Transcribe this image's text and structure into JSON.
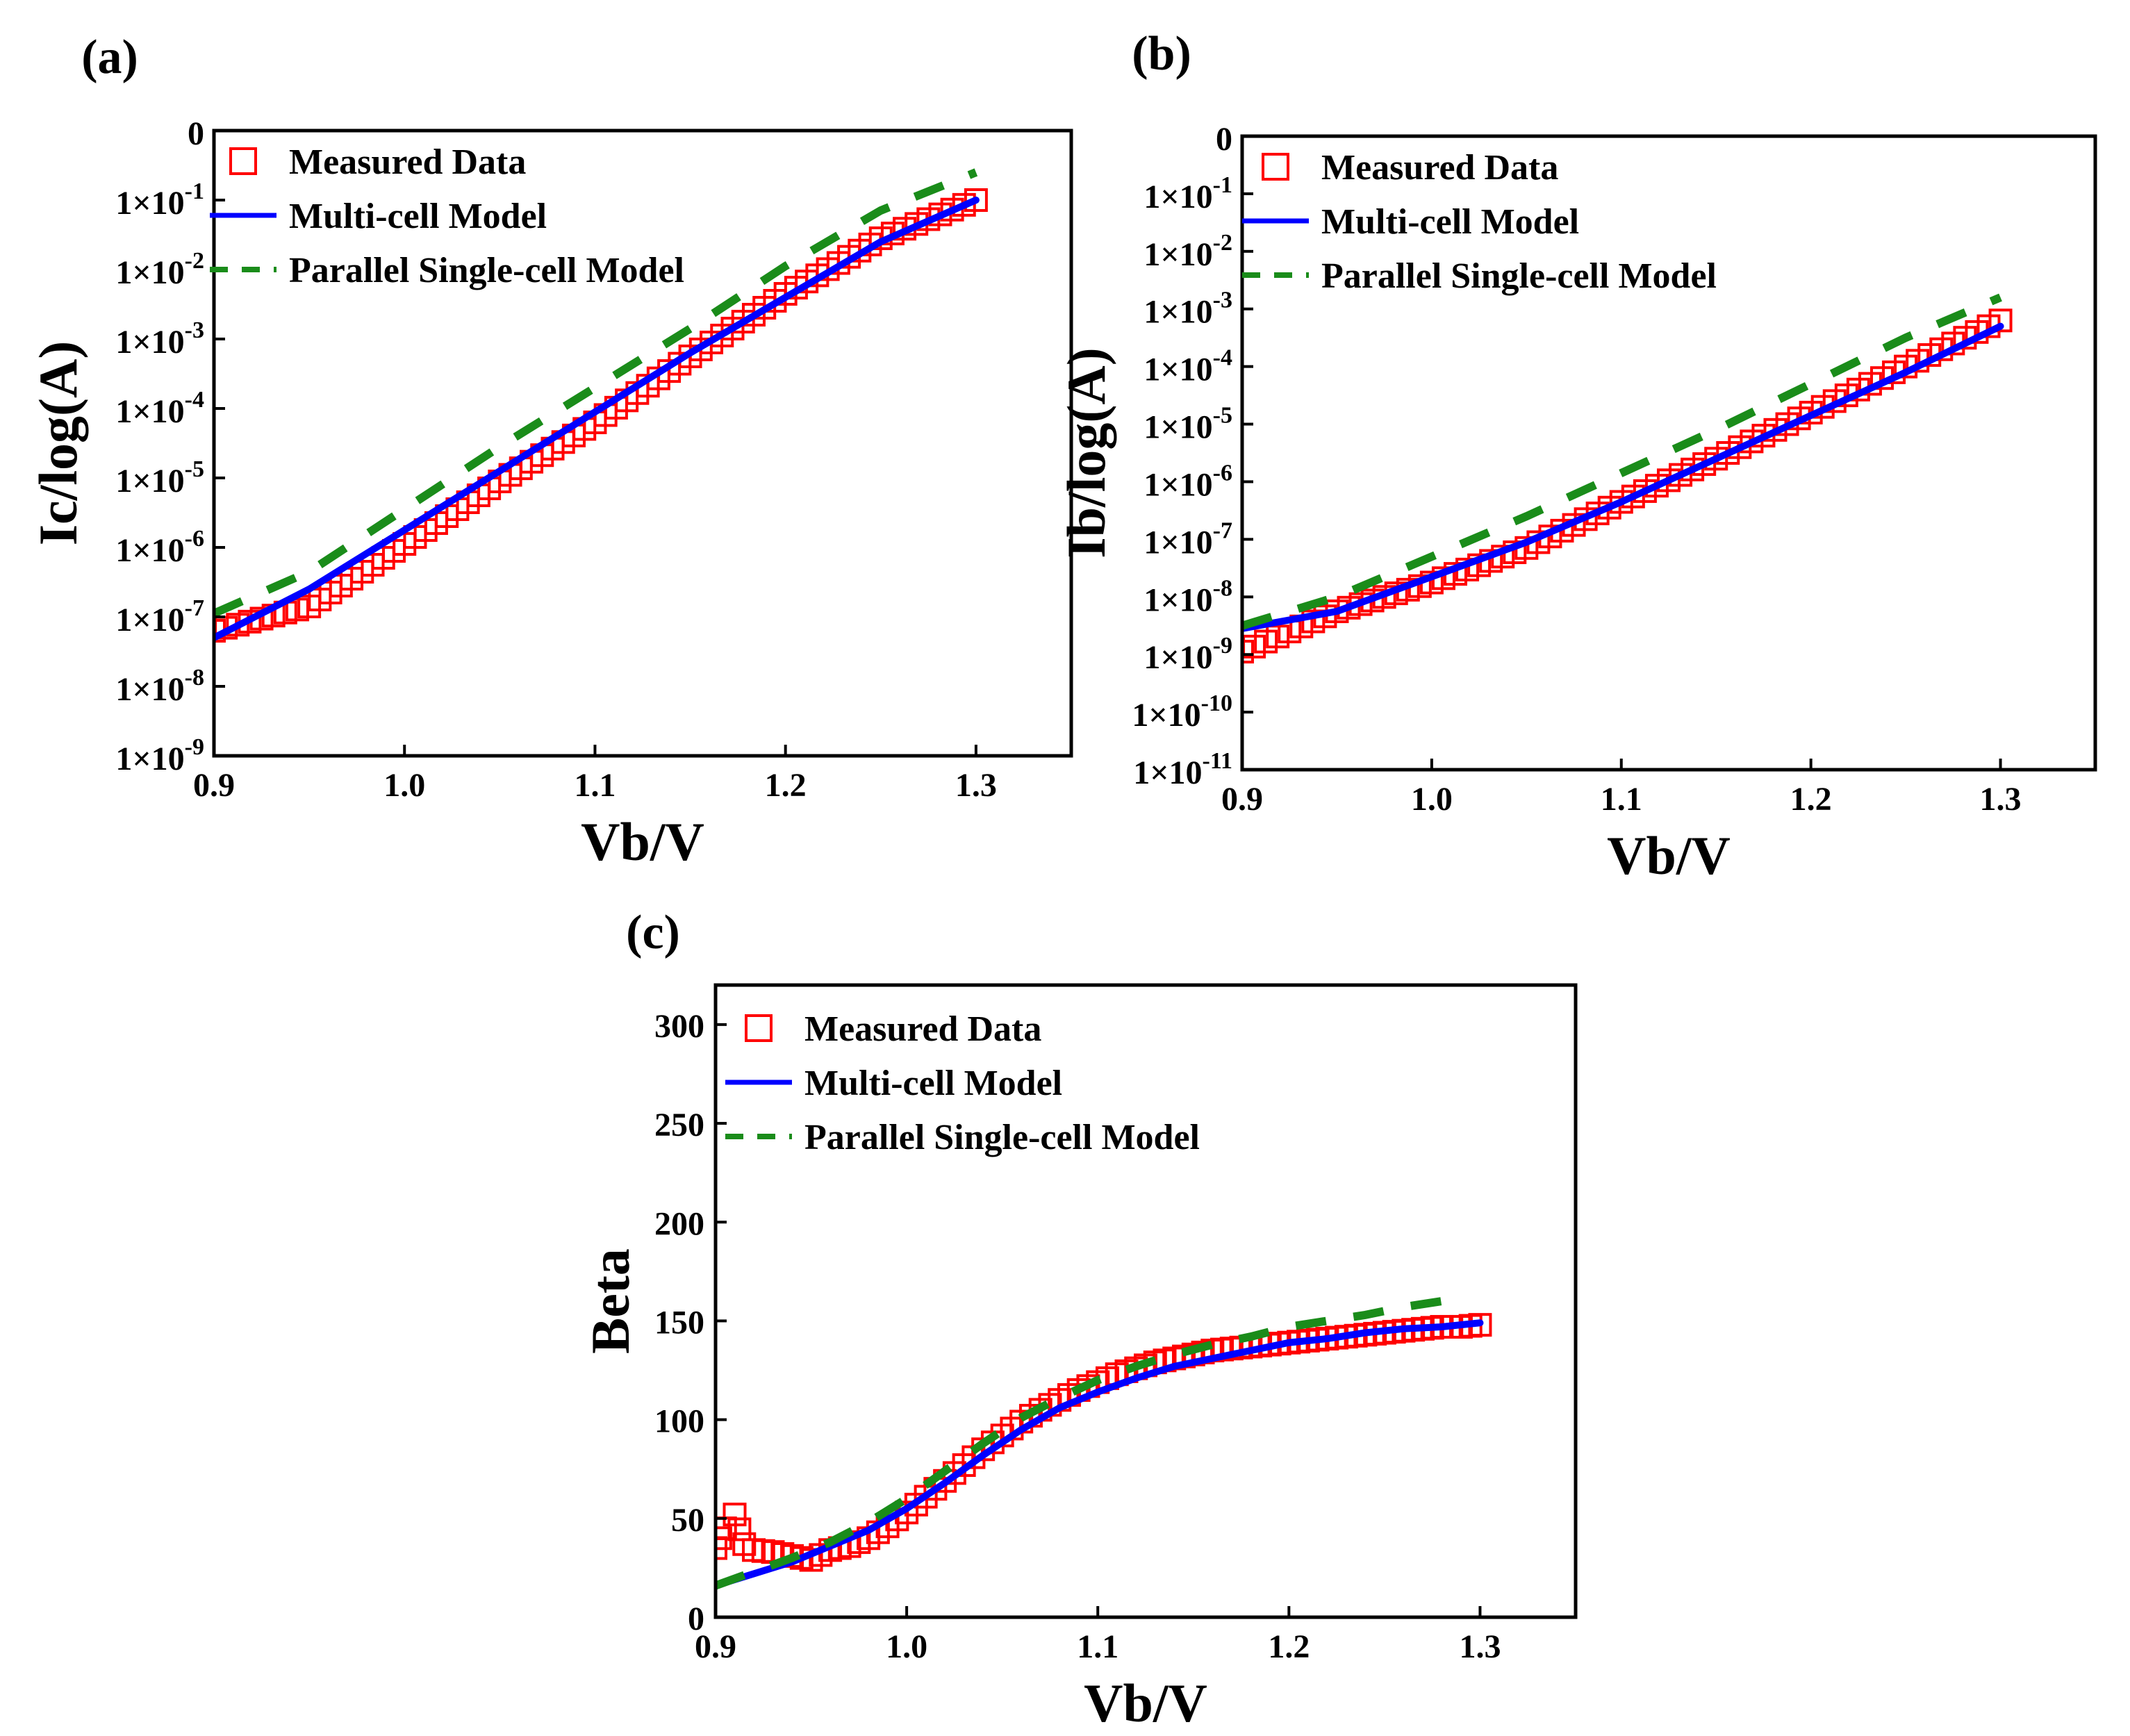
{
  "colors": {
    "measured": "#ff0000",
    "multi_cell": "#0000ff",
    "parallel_single_cell": "#1a8c1a",
    "axis": "#000000"
  },
  "chart_data": [
    {
      "panel_label": "(a)",
      "type": "line",
      "yscale": "log",
      "xlabel": "Vb/V",
      "ylabel": "Ic/log(A)",
      "xlim": [
        0.9,
        1.35
      ],
      "ylim_log10": [
        -9,
        0
      ],
      "x_ticks": [
        "0.9",
        "1.0",
        "1.1",
        "1.2",
        "1.3"
      ],
      "y_ticks": [
        {
          "mantissa": "0",
          "exp": ""
        },
        {
          "mantissa": "1×10",
          "exp": "-1"
        },
        {
          "mantissa": "1×10",
          "exp": "-2"
        },
        {
          "mantissa": "1×10",
          "exp": "-3"
        },
        {
          "mantissa": "1×10",
          "exp": "-4"
        },
        {
          "mantissa": "1×10",
          "exp": "-5"
        },
        {
          "mantissa": "1×10",
          "exp": "-6"
        },
        {
          "mantissa": "1×10",
          "exp": "-7"
        },
        {
          "mantissa": "1×10",
          "exp": "-8"
        },
        {
          "mantissa": "1×10",
          "exp": "-9"
        }
      ],
      "legend": [
        "Measured Data",
        "Multi-cell Model",
        "Parallel Single-cell Model"
      ],
      "series": [
        {
          "name": "Measured Data",
          "style": "markers",
          "x": [
            0.9,
            0.95,
            1.0,
            1.05,
            1.1,
            1.15,
            1.2,
            1.25,
            1.3
          ],
          "log10_y": [
            -7.2,
            -6.85,
            -5.95,
            -5.05,
            -4.2,
            -3.25,
            -2.35,
            -1.55,
            -1.0
          ]
        },
        {
          "name": "Multi-cell Model",
          "style": "solid",
          "x": [
            0.9,
            0.95,
            1.0,
            1.05,
            1.1,
            1.15,
            1.2,
            1.25,
            1.3
          ],
          "log10_y": [
            -7.3,
            -6.6,
            -5.75,
            -4.9,
            -4.05,
            -3.2,
            -2.4,
            -1.6,
            -1.0
          ]
        },
        {
          "name": "Parallel Single-cell Model",
          "style": "dashed",
          "x": [
            0.9,
            0.95,
            1.0,
            1.05,
            1.1,
            1.15,
            1.2,
            1.25,
            1.3
          ],
          "log10_y": [
            -6.95,
            -6.35,
            -5.45,
            -4.55,
            -3.7,
            -2.85,
            -1.95,
            -1.15,
            -0.6
          ]
        }
      ]
    },
    {
      "panel_label": "(b)",
      "type": "line",
      "yscale": "log",
      "xlabel": "Vb/V",
      "ylabel": "Ib/log(A)",
      "xlim": [
        0.9,
        1.35
      ],
      "ylim_log10": [
        -11,
        0
      ],
      "x_ticks": [
        "0.9",
        "1.0",
        "1.1",
        "1.2",
        "1.3"
      ],
      "y_ticks": [
        {
          "mantissa": "0",
          "exp": ""
        },
        {
          "mantissa": "1×10",
          "exp": "-1"
        },
        {
          "mantissa": "1×10",
          "exp": "-2"
        },
        {
          "mantissa": "1×10",
          "exp": "-3"
        },
        {
          "mantissa": "1×10",
          "exp": "-4"
        },
        {
          "mantissa": "1×10",
          "exp": "-5"
        },
        {
          "mantissa": "1×10",
          "exp": "-6"
        },
        {
          "mantissa": "1×10",
          "exp": "-7"
        },
        {
          "mantissa": "1×10",
          "exp": "-8"
        },
        {
          "mantissa": "1×10",
          "exp": "-9"
        },
        {
          "mantissa": "1×10",
          "exp": "-10"
        },
        {
          "mantissa": "1×10",
          "exp": "-11"
        }
      ],
      "legend": [
        "Measured Data",
        "Multi-cell Model",
        "Parallel Single-cell Model"
      ],
      "series": [
        {
          "name": "Measured Data",
          "style": "markers",
          "x": [
            0.9,
            0.95,
            1.0,
            1.05,
            1.1,
            1.15,
            1.2,
            1.25,
            1.3
          ],
          "log10_y": [
            -8.95,
            -8.25,
            -7.75,
            -7.15,
            -6.35,
            -5.6,
            -4.8,
            -4.0,
            -3.2
          ]
        },
        {
          "name": "Multi-cell Model",
          "style": "solid",
          "x": [
            0.9,
            0.95,
            1.0,
            1.05,
            1.1,
            1.15,
            1.2,
            1.25,
            1.3
          ],
          "log10_y": [
            -8.55,
            -8.25,
            -7.65,
            -7.05,
            -6.35,
            -5.6,
            -4.85,
            -4.1,
            -3.3
          ]
        },
        {
          "name": "Parallel Single-cell Model",
          "style": "dashed",
          "x": [
            0.9,
            0.95,
            1.0,
            1.05,
            1.1,
            1.15,
            1.2,
            1.25,
            1.3
          ],
          "log10_y": [
            -8.5,
            -8.0,
            -7.3,
            -6.6,
            -5.85,
            -5.1,
            -4.3,
            -3.5,
            -2.8
          ]
        }
      ]
    },
    {
      "panel_label": "(c)",
      "type": "line",
      "yscale": "linear",
      "xlabel": "Vb/V",
      "ylabel": "Beta",
      "xlim": [
        0.9,
        1.35
      ],
      "ylim": [
        0,
        320
      ],
      "x_ticks": [
        "0.9",
        "1.0",
        "1.1",
        "1.2",
        "1.3"
      ],
      "y_ticks": [
        "0",
        "50",
        "100",
        "150",
        "200",
        "250",
        "300"
      ],
      "legend": [
        "Measured Data",
        "Multi-cell Model",
        "Parallel Single-cell Model"
      ],
      "series": [
        {
          "name": "Measured Data",
          "style": "markers",
          "x": [
            0.9,
            0.905,
            0.91,
            0.915,
            0.92,
            0.93,
            0.94,
            0.95,
            0.96,
            0.97,
            0.98,
            0.99,
            1.0,
            1.01,
            1.02,
            1.03,
            1.04,
            1.05,
            1.06,
            1.07,
            1.08,
            1.09,
            1.1,
            1.11,
            1.12,
            1.13,
            1.14,
            1.15,
            1.16,
            1.17,
            1.18,
            1.19,
            1.2,
            1.21,
            1.22,
            1.23,
            1.24,
            1.25,
            1.26,
            1.27,
            1.28,
            1.29,
            1.3
          ],
          "y": [
            35,
            45,
            52,
            37,
            34,
            33,
            31,
            29,
            34,
            36,
            40,
            46,
            53,
            61,
            69,
            77,
            85,
            92,
            99,
            105,
            110,
            115,
            119,
            123,
            126,
            129,
            131,
            133,
            135,
            136,
            137,
            138,
            139,
            140,
            141,
            142,
            143,
            144,
            145,
            146,
            147,
            147,
            148
          ]
        },
        {
          "name": "Multi-cell Model",
          "style": "solid",
          "x": [
            0.9,
            0.92,
            0.94,
            0.96,
            0.98,
            1.0,
            1.02,
            1.04,
            1.06,
            1.08,
            1.1,
            1.12,
            1.14,
            1.16,
            1.18,
            1.2,
            1.22,
            1.24,
            1.26,
            1.28,
            1.3
          ],
          "y": [
            16,
            22,
            28,
            36,
            44,
            55,
            68,
            82,
            95,
            106,
            114,
            121,
            127,
            131,
            135,
            139,
            141,
            144,
            146,
            147,
            149
          ]
        },
        {
          "name": "Parallel Single-cell Model",
          "style": "dashed",
          "x": [
            0.9,
            0.92,
            0.94,
            0.96,
            0.98,
            1.0,
            1.02,
            1.04,
            1.06,
            1.08,
            1.1,
            1.12,
            1.14,
            1.16,
            1.18,
            1.2,
            1.22,
            1.24,
            1.26,
            1.28
          ],
          "y": [
            16,
            23,
            30,
            38,
            48,
            60,
            74,
            88,
            101,
            111,
            120,
            127,
            133,
            138,
            142,
            147,
            150,
            153,
            157,
            160
          ]
        }
      ]
    }
  ]
}
